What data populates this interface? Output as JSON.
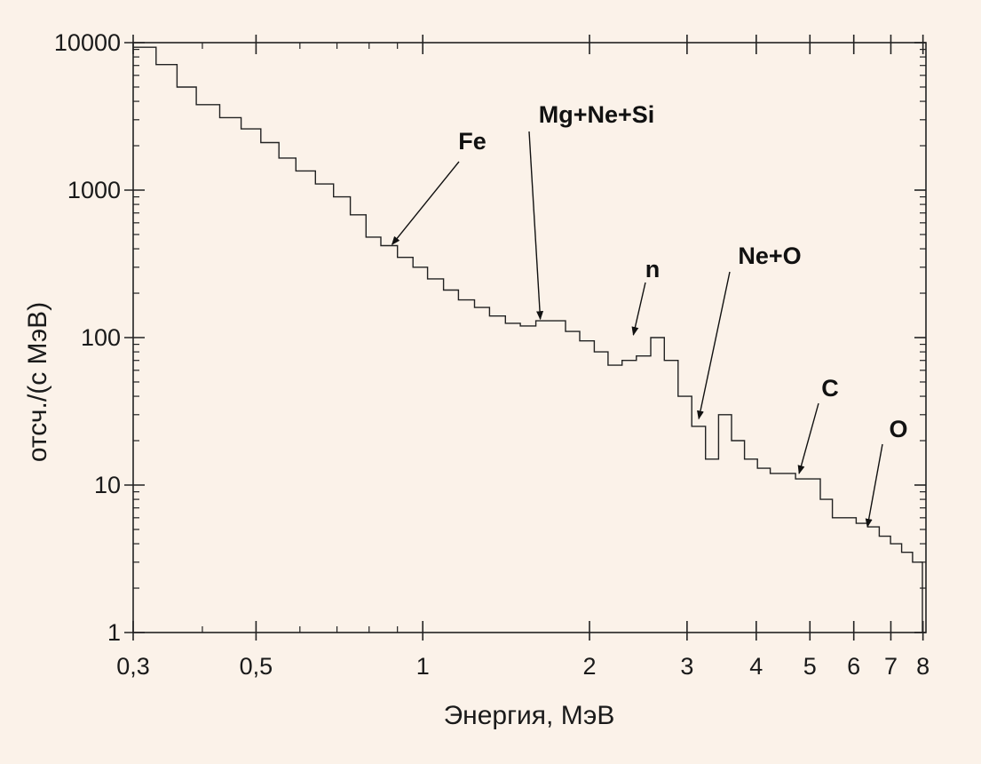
{
  "chart_data": {
    "type": "line",
    "style": "step-histogram",
    "xlabel": "Энергия, МэВ",
    "ylabel": "отсч./(с   МэВ)",
    "x_scale": "log",
    "y_scale": "log",
    "xlim": [
      0.3,
      8.1
    ],
    "ylim": [
      1,
      10000
    ],
    "grid": false,
    "x_ticks": [
      {
        "value": 0.3,
        "label": "0,3"
      },
      {
        "value": 0.5,
        "label": "0,5"
      },
      {
        "value": 1,
        "label": "1"
      },
      {
        "value": 2,
        "label": "2"
      },
      {
        "value": 3,
        "label": "3"
      },
      {
        "value": 4,
        "label": "4"
      },
      {
        "value": 5,
        "label": "5"
      },
      {
        "value": 6,
        "label": "6"
      },
      {
        "value": 7,
        "label": "7"
      },
      {
        "value": 8,
        "label": "8"
      }
    ],
    "y_ticks": [
      {
        "value": 1,
        "label": "1"
      },
      {
        "value": 10,
        "label": "10"
      },
      {
        "value": 100,
        "label": "100"
      },
      {
        "value": 1000,
        "label": "1000"
      },
      {
        "value": 10000,
        "label": "10000"
      }
    ],
    "series": [
      {
        "x": [
          0.3,
          0.33,
          0.36,
          0.39,
          0.43,
          0.47,
          0.51,
          0.55,
          0.59,
          0.64,
          0.69,
          0.74,
          0.79,
          0.84,
          0.9,
          0.96,
          1.02,
          1.09,
          1.16,
          1.24,
          1.32,
          1.41,
          1.5,
          1.6,
          1.7,
          1.81,
          1.92,
          2.04,
          2.16,
          2.29,
          2.43,
          2.58,
          2.73,
          2.89,
          3.06,
          3.24,
          3.42,
          3.61,
          3.81,
          4.02,
          4.24,
          4.47,
          4.71,
          4.96,
          5.22,
          5.49,
          5.77,
          6.06,
          6.36,
          6.67,
          6.99,
          7.32,
          7.66
        ],
        "y": [
          9300,
          7100,
          5000,
          3800,
          3100,
          2600,
          2100,
          1650,
          1350,
          1100,
          900,
          680,
          480,
          420,
          350,
          300,
          250,
          210,
          180,
          160,
          140,
          125,
          120,
          130,
          130,
          110,
          95,
          80,
          65,
          70,
          75,
          100,
          70,
          40,
          25,
          15,
          30,
          20,
          15,
          13,
          12,
          12,
          11,
          11,
          8,
          6,
          6,
          5.5,
          5.2,
          4.5,
          4,
          3.5,
          3
        ]
      }
    ],
    "annotations": [
      {
        "label": "Fe",
        "arrow_to_x": 0.88,
        "arrow_to_y": 410
      },
      {
        "label": "Mg+Ne+Si",
        "arrow_to_x": 1.63,
        "arrow_to_y": 128
      },
      {
        "label": "n",
        "arrow_to_x": 2.4,
        "arrow_to_y": 100
      },
      {
        "label": "Ne+O",
        "arrow_to_x": 3.15,
        "arrow_to_y": 27
      },
      {
        "label": "C",
        "arrow_to_x": 4.78,
        "arrow_to_y": 11.5
      },
      {
        "label": "O",
        "arrow_to_x": 6.35,
        "arrow_to_y": 5
      }
    ]
  }
}
